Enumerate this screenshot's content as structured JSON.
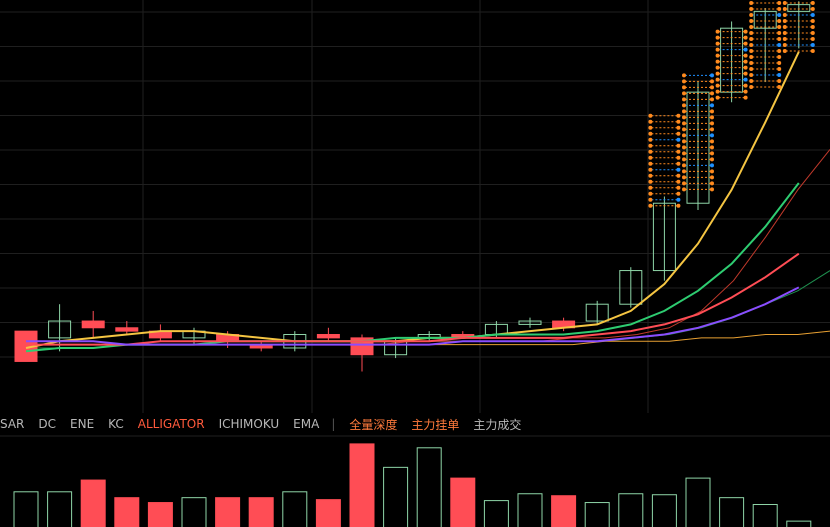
{
  "tabs": [
    {
      "label": "SAR",
      "active": false
    },
    {
      "label": "DC",
      "active": false
    },
    {
      "label": "ENE",
      "active": false
    },
    {
      "label": "KC",
      "active": false
    },
    {
      "label": "ALLIGATOR",
      "active": true
    },
    {
      "label": "ICHIMOKU",
      "active": false
    },
    {
      "label": "EMA",
      "active": false
    }
  ],
  "separator": "|",
  "depth_tabs": [
    {
      "label": "全量深度",
      "color": "#ff7a3c"
    },
    {
      "label": "主力挂单",
      "color": "#ff7a3c"
    },
    {
      "label": "主力成交",
      "color": "#b8b8b8"
    }
  ],
  "colors": {
    "up": "#8fd6a8",
    "down": "#ff4d55",
    "ma_yellow": "#f5c542",
    "ma_green": "#2ecc71",
    "ma_red": "#ff4d55",
    "ma_purple": "#8a4dff",
    "ma_dark_green": "#1e8f4e",
    "ma_orange": "#e8a032",
    "ma_thin_red": "#c0392b",
    "order_orange": "#ff8a1e",
    "order_blue": "#1e90ff",
    "grid": "#1f1f1f",
    "background": "#000000"
  },
  "chart_data": [
    {
      "type": "candlestick",
      "title": "",
      "ylim": [
        0,
        112
      ],
      "grid": true,
      "candles": [
        {
          "o": 16,
          "h": 16,
          "l": 7,
          "c": 7
        },
        {
          "o": 14,
          "h": 24,
          "l": 10,
          "c": 19
        },
        {
          "o": 19,
          "h": 22,
          "l": 14,
          "c": 17
        },
        {
          "o": 17,
          "h": 19,
          "l": 15,
          "c": 16
        },
        {
          "o": 16,
          "h": 18,
          "l": 13,
          "c": 14
        },
        {
          "o": 14,
          "h": 17,
          "l": 12,
          "c": 16
        },
        {
          "o": 15,
          "h": 16,
          "l": 11,
          "c": 13
        },
        {
          "o": 12,
          "h": 13,
          "l": 10,
          "c": 11
        },
        {
          "o": 11,
          "h": 16,
          "l": 10,
          "c": 15
        },
        {
          "o": 15,
          "h": 17,
          "l": 13,
          "c": 14
        },
        {
          "o": 14,
          "h": 15,
          "l": 4,
          "c": 9
        },
        {
          "o": 9,
          "h": 14,
          "l": 8,
          "c": 13
        },
        {
          "o": 14,
          "h": 16,
          "l": 13,
          "c": 15
        },
        {
          "o": 15,
          "h": 16,
          "l": 14,
          "c": 14
        },
        {
          "o": 15,
          "h": 19,
          "l": 14,
          "c": 18
        },
        {
          "o": 18,
          "h": 20,
          "l": 17,
          "c": 19
        },
        {
          "o": 19,
          "h": 20,
          "l": 16,
          "c": 17
        },
        {
          "o": 19,
          "h": 25,
          "l": 18,
          "c": 24
        },
        {
          "o": 24,
          "h": 35,
          "l": 23,
          "c": 34
        },
        {
          "o": 34,
          "h": 56,
          "l": 31,
          "c": 54
        },
        {
          "o": 54,
          "h": 90,
          "l": 52,
          "c": 87
        },
        {
          "o": 87,
          "h": 108,
          "l": 84,
          "c": 106
        },
        {
          "o": 106,
          "h": 112,
          "l": 90,
          "c": 111
        },
        {
          "o": 111,
          "h": 114,
          "l": 100,
          "c": 113
        }
      ],
      "lines": [
        {
          "color": "ma_yellow",
          "values": [
            11,
            13,
            14,
            15,
            16,
            16,
            15,
            14,
            13,
            13,
            13,
            13,
            14,
            14,
            15,
            16,
            17,
            18,
            22,
            30,
            42,
            58,
            78,
            99
          ]
        },
        {
          "color": "ma_green",
          "values": [
            10,
            11,
            11,
            12,
            12,
            12,
            13,
            13,
            13,
            13,
            13,
            14,
            14,
            14,
            15,
            15,
            15,
            16,
            18,
            22,
            28,
            36,
            47,
            60
          ]
        },
        {
          "color": "ma_red",
          "values": [
            12,
            12,
            12,
            12,
            13,
            13,
            13,
            13,
            13,
            13,
            13,
            13,
            13,
            14,
            14,
            14,
            14,
            15,
            16,
            18,
            21,
            26,
            32,
            39
          ]
        },
        {
          "color": "ma_purple",
          "values": [
            13,
            13,
            13,
            12,
            12,
            12,
            12,
            12,
            12,
            12,
            12,
            12,
            12,
            13,
            13,
            13,
            13,
            13,
            14,
            15,
            17,
            20,
            24,
            29
          ]
        }
      ],
      "long_lines": [
        {
          "color": "ma_dark_green",
          "values": [
            11,
            11,
            11,
            12,
            12,
            12,
            12,
            12,
            12,
            12,
            12,
            12,
            13,
            13,
            13,
            13,
            13,
            13,
            13,
            14,
            15,
            17,
            20,
            24,
            28,
            34
          ]
        },
        {
          "color": "ma_thin_red",
          "values": [
            12,
            12,
            12,
            12,
            12,
            12,
            12,
            12,
            12,
            12,
            12,
            12,
            13,
            13,
            13,
            13,
            13,
            14,
            14,
            15,
            17,
            22,
            31,
            44,
            58,
            70
          ]
        },
        {
          "color": "ma_orange",
          "values": [
            12,
            12,
            12,
            12,
            12,
            12,
            12,
            12,
            12,
            12,
            12,
            12,
            12,
            12,
            12,
            12,
            12,
            12,
            13,
            13,
            13,
            14,
            14,
            15,
            15,
            16
          ]
        }
      ],
      "order_markers": [
        {
          "candle": 19,
          "from": 53,
          "to": 80
        },
        {
          "candle": 20,
          "from": 57,
          "to": 92
        },
        {
          "candle": 21,
          "from": 85,
          "to": 105
        },
        {
          "candle": 22,
          "from": 87,
          "to": 120
        },
        {
          "candle": 23,
          "from": 98,
          "to": 120
        }
      ]
    },
    {
      "type": "bar",
      "title": "",
      "ylim": [
        0,
        90
      ],
      "values": [
        36,
        36,
        48,
        30,
        25,
        30,
        30,
        30,
        36,
        28,
        85,
        61,
        81,
        50,
        27,
        34,
        32,
        25,
        34,
        33,
        50,
        30,
        23,
        6
      ],
      "colors": [
        "up",
        "up",
        "down",
        "down",
        "down",
        "up",
        "down",
        "down",
        "up",
        "down",
        "down",
        "up",
        "up",
        "down",
        "up",
        "up",
        "down",
        "up",
        "up",
        "up",
        "up",
        "up",
        "up",
        "up"
      ]
    }
  ]
}
